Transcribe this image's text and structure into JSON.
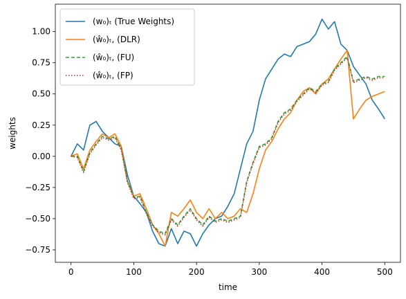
{
  "chart_data": {
    "type": "line",
    "xlabel": "time",
    "ylabel": "weights",
    "xlim": [
      -25,
      525
    ],
    "ylim": [
      -0.85,
      1.22
    ],
    "xticks": [
      0,
      100,
      200,
      300,
      400,
      500
    ],
    "xtick_labels": [
      "0",
      "100",
      "200",
      "300",
      "400",
      "500"
    ],
    "yticks": [
      -0.75,
      -0.5,
      -0.25,
      0.0,
      0.25,
      0.5,
      0.75,
      1.0
    ],
    "ytick_labels": [
      "−0.75",
      "−0.50",
      "−0.25",
      "0.00",
      "0.25",
      "0.50",
      "0.75",
      "1.00"
    ],
    "grid": false,
    "legend_position": "top-left",
    "series": [
      {
        "name": "(w₀)ₜ (True Weights)",
        "color": "#1f77b4",
        "style": "solid",
        "x": [
          0,
          10,
          20,
          30,
          40,
          50,
          60,
          70,
          80,
          90,
          100,
          110,
          120,
          130,
          140,
          150,
          160,
          170,
          180,
          190,
          200,
          210,
          220,
          230,
          240,
          250,
          260,
          270,
          280,
          290,
          300,
          310,
          320,
          330,
          340,
          350,
          360,
          370,
          380,
          390,
          400,
          410,
          420,
          430,
          440,
          450,
          460,
          470,
          480,
          490,
          500
        ],
        "y": [
          0.0,
          0.1,
          0.05,
          0.25,
          0.28,
          0.2,
          0.15,
          0.1,
          0.08,
          -0.15,
          -0.32,
          -0.38,
          -0.45,
          -0.6,
          -0.7,
          -0.72,
          -0.58,
          -0.7,
          -0.6,
          -0.62,
          -0.72,
          -0.62,
          -0.55,
          -0.5,
          -0.48,
          -0.4,
          -0.3,
          -0.1,
          0.1,
          0.2,
          0.45,
          0.62,
          0.7,
          0.78,
          0.82,
          0.8,
          0.88,
          0.9,
          0.92,
          0.98,
          1.1,
          1.02,
          1.08,
          0.9,
          0.85,
          0.72,
          0.65,
          0.58,
          0.45,
          0.38,
          0.3
        ]
      },
      {
        "name": "(ŵ₀)ₜ, (DLR)",
        "color": "#ff7f0e",
        "style": "solid",
        "x": [
          0,
          10,
          20,
          30,
          40,
          50,
          60,
          70,
          80,
          90,
          100,
          110,
          120,
          130,
          140,
          150,
          160,
          170,
          180,
          190,
          200,
          210,
          220,
          230,
          240,
          250,
          260,
          270,
          280,
          290,
          300,
          310,
          320,
          330,
          340,
          350,
          360,
          370,
          380,
          390,
          400,
          410,
          420,
          430,
          440,
          450,
          460,
          470,
          480,
          490,
          500
        ],
        "y": [
          0.0,
          0.02,
          -0.1,
          0.05,
          0.12,
          0.18,
          0.15,
          0.18,
          0.08,
          -0.2,
          -0.32,
          -0.3,
          -0.42,
          -0.55,
          -0.62,
          -0.72,
          -0.45,
          -0.48,
          -0.42,
          -0.35,
          -0.45,
          -0.5,
          -0.42,
          -0.5,
          -0.45,
          -0.5,
          -0.48,
          -0.42,
          -0.45,
          -0.3,
          -0.1,
          0.05,
          0.12,
          0.22,
          0.3,
          0.35,
          0.45,
          0.52,
          0.55,
          0.5,
          0.58,
          0.62,
          0.7,
          0.78,
          0.85,
          0.3,
          0.38,
          0.45,
          0.48,
          0.5,
          0.52
        ]
      },
      {
        "name": "(ŵ₀)ₜ, (FU)",
        "color": "#2ca02c",
        "style": "dashed",
        "x": [
          0,
          10,
          20,
          30,
          40,
          50,
          60,
          70,
          80,
          90,
          100,
          110,
          120,
          130,
          140,
          150,
          160,
          170,
          180,
          190,
          200,
          210,
          220,
          230,
          240,
          250,
          260,
          270,
          280,
          290,
          300,
          310,
          320,
          330,
          340,
          350,
          360,
          370,
          380,
          390,
          400,
          410,
          420,
          430,
          440,
          450,
          460,
          470,
          480,
          490,
          500
        ],
        "y": [
          0.0,
          0.0,
          -0.12,
          0.03,
          0.1,
          0.16,
          0.14,
          0.16,
          0.06,
          -0.2,
          -0.33,
          -0.32,
          -0.45,
          -0.55,
          -0.6,
          -0.62,
          -0.5,
          -0.55,
          -0.48,
          -0.42,
          -0.5,
          -0.55,
          -0.48,
          -0.52,
          -0.5,
          -0.52,
          -0.5,
          -0.48,
          -0.2,
          -0.05,
          0.08,
          0.1,
          0.15,
          0.28,
          0.35,
          0.38,
          0.45,
          0.5,
          0.55,
          0.52,
          0.58,
          0.6,
          0.7,
          0.75,
          0.8,
          0.6,
          0.62,
          0.64,
          0.62,
          0.64,
          0.64
        ]
      },
      {
        "name": "(ŵ₀)ₜ, (FP)",
        "color": "#d62728",
        "style": "dotted",
        "x": [
          0,
          10,
          20,
          30,
          40,
          50,
          60,
          70,
          80,
          90,
          100,
          110,
          120,
          130,
          140,
          150,
          160,
          170,
          180,
          190,
          200,
          210,
          220,
          230,
          240,
          250,
          260,
          270,
          280,
          290,
          300,
          310,
          320,
          330,
          340,
          350,
          360,
          370,
          380,
          390,
          400,
          410,
          420,
          430,
          440,
          450,
          460,
          470,
          480,
          490,
          500
        ],
        "y": [
          0.0,
          -0.01,
          -0.13,
          0.02,
          0.09,
          0.15,
          0.13,
          0.15,
          0.05,
          -0.21,
          -0.34,
          -0.33,
          -0.46,
          -0.56,
          -0.61,
          -0.63,
          -0.51,
          -0.56,
          -0.49,
          -0.43,
          -0.51,
          -0.56,
          -0.49,
          -0.53,
          -0.51,
          -0.53,
          -0.51,
          -0.49,
          -0.21,
          -0.06,
          0.07,
          0.09,
          0.14,
          0.27,
          0.34,
          0.37,
          0.44,
          0.49,
          0.54,
          0.51,
          0.57,
          0.59,
          0.69,
          0.74,
          0.79,
          0.59,
          0.61,
          0.63,
          0.61,
          0.63,
          0.63
        ]
      }
    ]
  }
}
